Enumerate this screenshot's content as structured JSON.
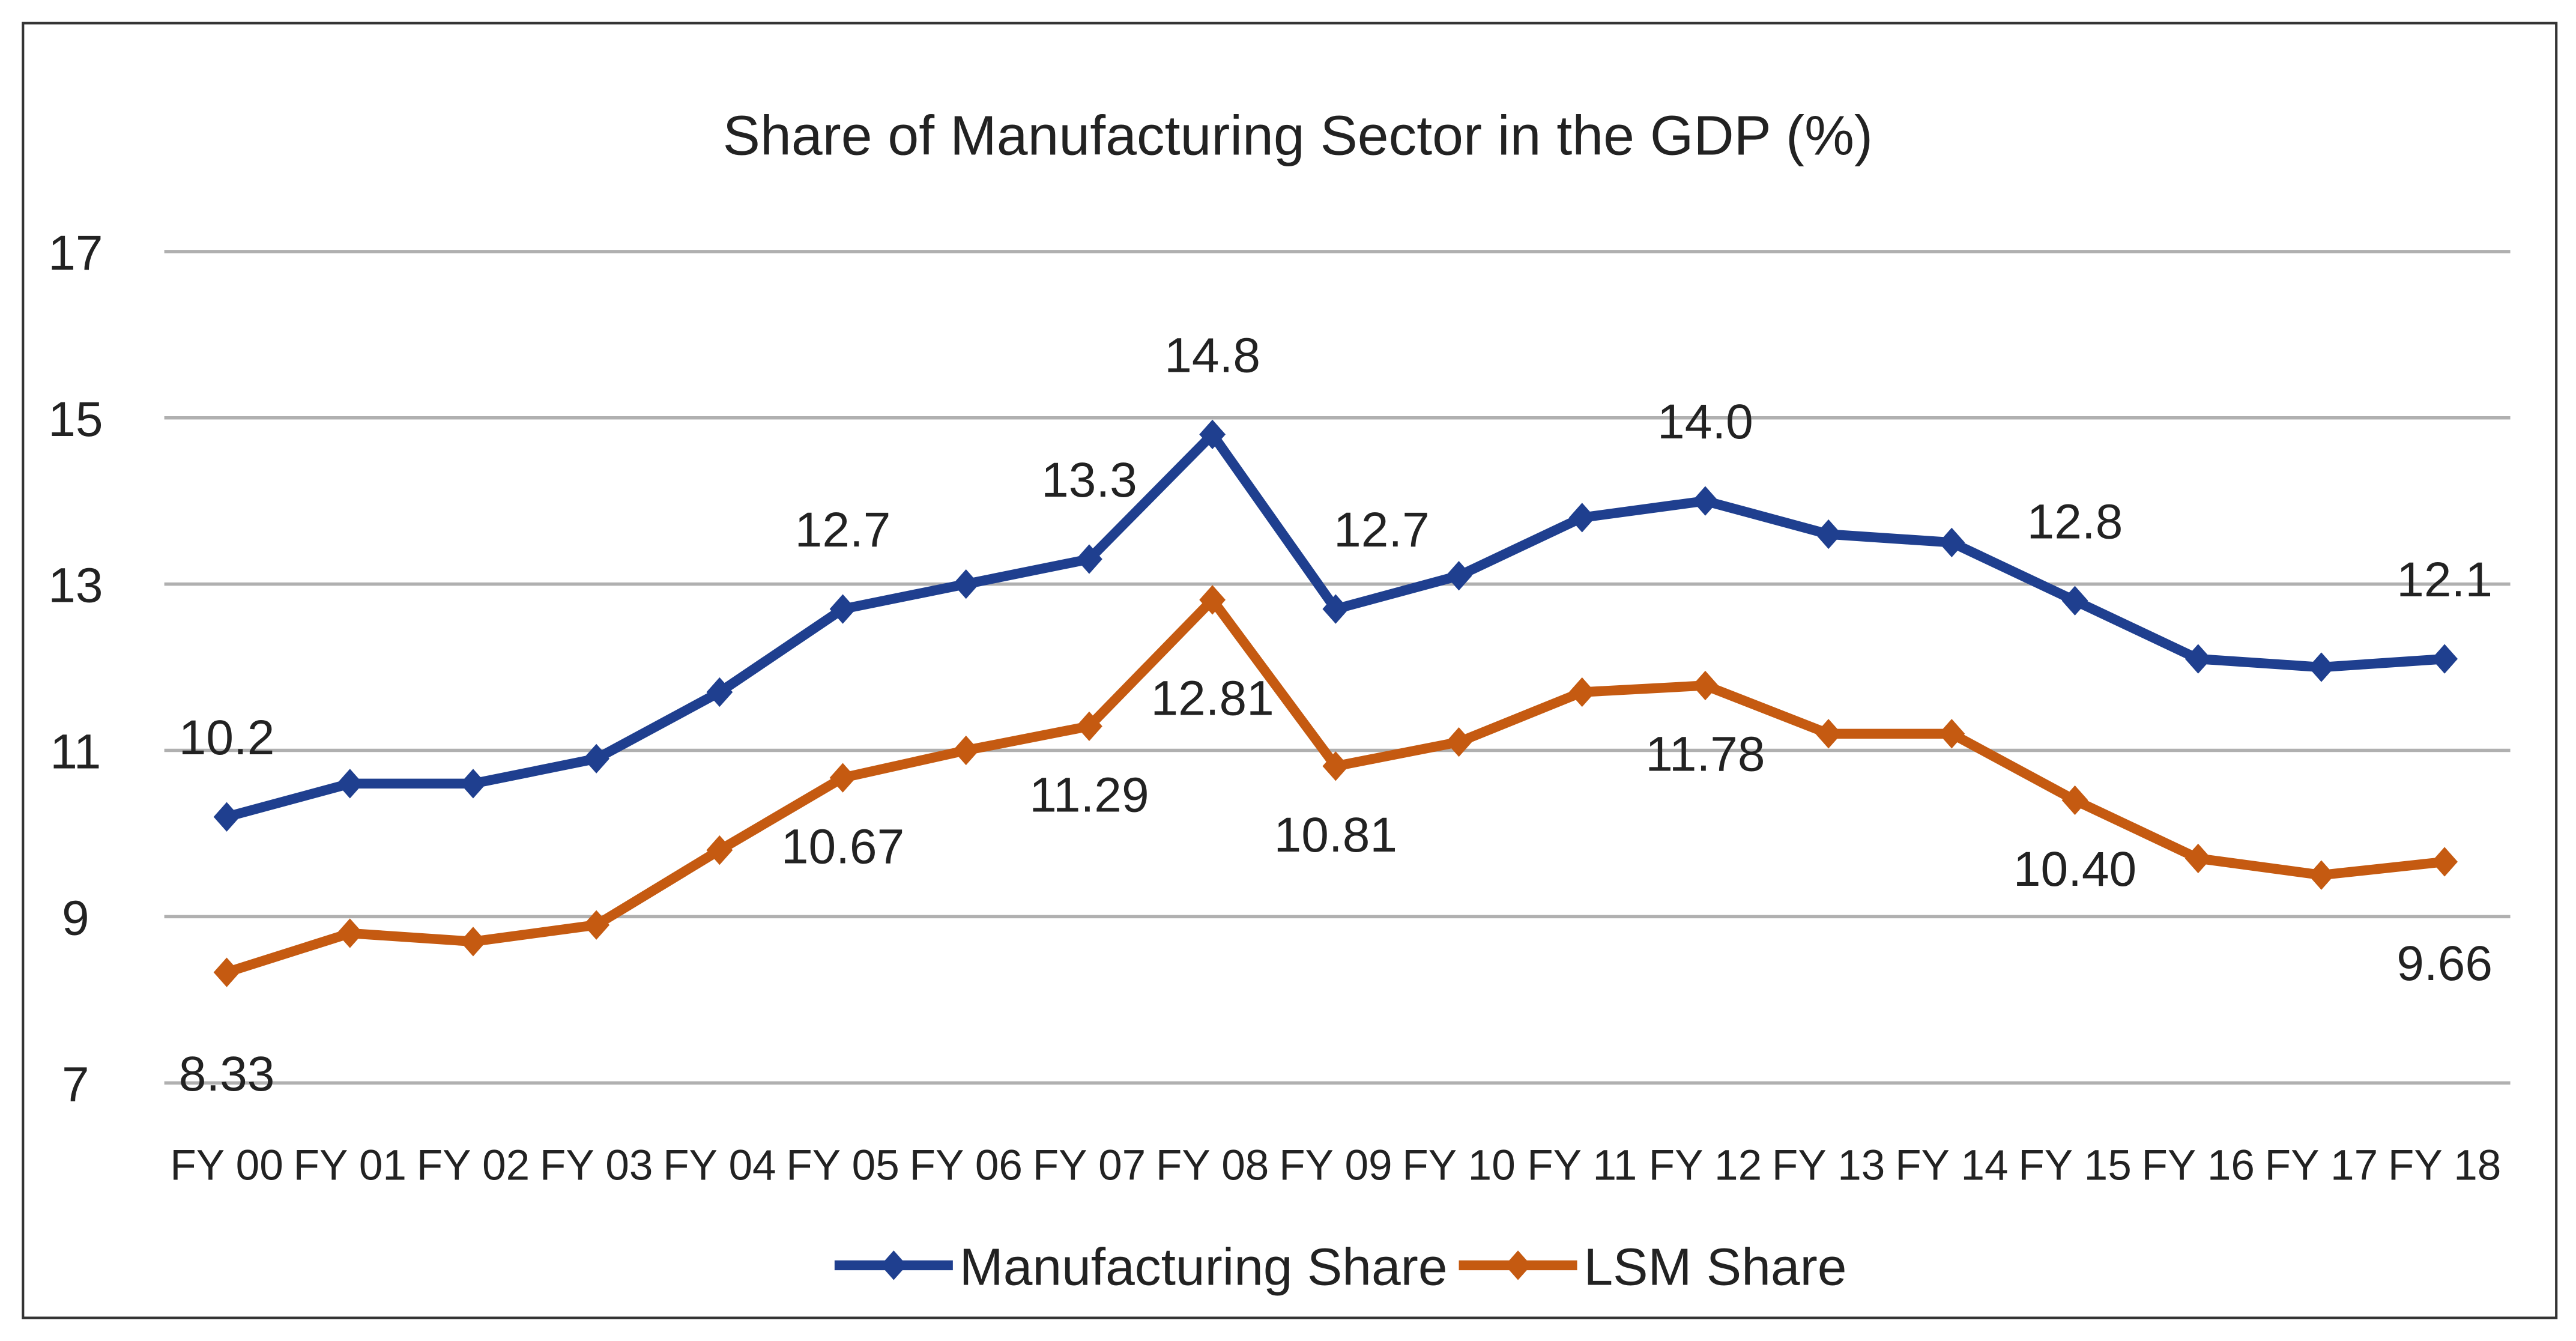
{
  "chart_data": {
    "type": "line",
    "title": "Share of Manufacturing Sector in the GDP (%)",
    "xlabel": "",
    "ylabel": "",
    "ylim": [
      7,
      17
    ],
    "yticks": [
      7,
      9,
      11,
      13,
      15,
      17
    ],
    "grid": true,
    "legend_position": "bottom",
    "categories": [
      "FY 00",
      "FY 01",
      "FY 02",
      "FY 03",
      "FY 04",
      "FY 05",
      "FY 06",
      "FY 07",
      "FY 08",
      "FY 09",
      "FY 10",
      "FY 11",
      "FY 12",
      "FY 13",
      "FY 14",
      "FY 15",
      "FY 16",
      "FY 17",
      "FY 18"
    ],
    "series": [
      {
        "name": "Manufacturing Share",
        "color": "#1f3f8f",
        "values": [
          10.2,
          10.6,
          10.6,
          10.9,
          11.7,
          12.7,
          13.0,
          13.3,
          14.8,
          12.7,
          13.1,
          13.8,
          14.0,
          13.6,
          13.5,
          12.8,
          12.1,
          12.0,
          12.1
        ],
        "labels": {
          "0": "10.2",
          "5": "12.7",
          "7": "13.3",
          "8": "14.8",
          "9": "12.7",
          "12": "14.0",
          "15": "12.8",
          "18": "12.1"
        }
      },
      {
        "name": "LSM Share",
        "color": "#c55a11",
        "values": [
          8.33,
          8.8,
          8.7,
          8.9,
          9.8,
          10.67,
          11.0,
          11.29,
          12.81,
          10.81,
          11.1,
          11.7,
          11.78,
          11.2,
          11.2,
          10.4,
          9.7,
          9.5,
          9.66
        ],
        "labels": {
          "0": "8.33",
          "5": "10.67",
          "7": "11.29",
          "8": "12.81",
          "9": "10.81",
          "12": "11.78",
          "15": "10.40",
          "18": "9.66"
        }
      }
    ]
  }
}
